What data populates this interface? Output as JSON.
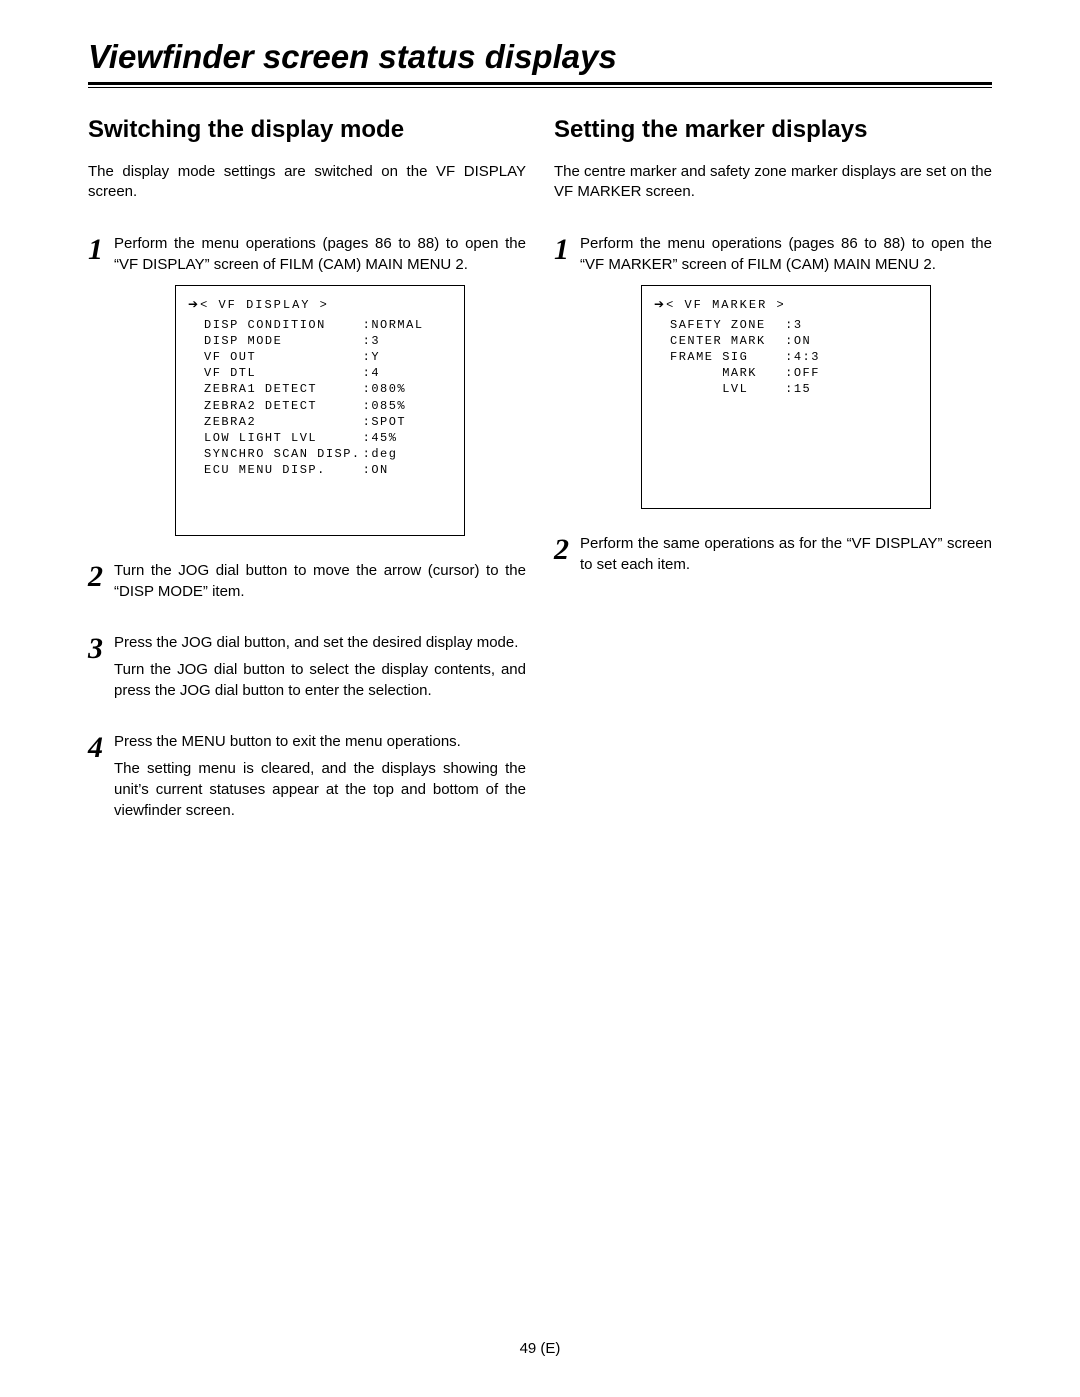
{
  "page_title": "Viewfinder screen status displays",
  "page_number": "49 (E)",
  "left": {
    "title": "Switching the display mode",
    "intro": "The display mode settings are switched on the VF DISPLAY screen.",
    "steps": [
      {
        "num": "1",
        "text": "Perform the menu operations (pages 86 to 88) to open the “VF DISPLAY” screen of FILM (CAM) MAIN MENU 2."
      },
      {
        "num": "2",
        "text": "Turn the JOG dial button to move the arrow (cursor) to the “DISP MODE” item."
      },
      {
        "num": "3",
        "text": "Press the JOG dial button, and set the desired display mode.",
        "text2": "Turn the JOG dial button to select the display contents, and press the JOG dial button to enter the selection."
      },
      {
        "num": "4",
        "text": "Press the MENU button to exit the menu operations.",
        "text2": "The setting menu is cleared, and the displays showing the unit’s current statuses appear at the top and bottom of the viewfinder screen."
      }
    ],
    "menu": {
      "header": "< VF DISPLAY >",
      "rows": [
        {
          "label": "DISP CONDITION",
          "value": ":NORMAL"
        },
        {
          "label": "DISP MODE",
          "value": ":3"
        },
        {
          "label": "VF OUT",
          "value": ":Y"
        },
        {
          "label": "VF DTL",
          "value": ":4"
        },
        {
          "label": "ZEBRA1 DETECT",
          "value": ":080%"
        },
        {
          "label": "ZEBRA2 DETECT",
          "value": ":085%"
        },
        {
          "label": "ZEBRA2",
          "value": ":SPOT"
        },
        {
          "label": "LOW LIGHT LVL",
          "value": ":45%"
        },
        {
          "label": "SYNCHRO SCAN DISP.",
          "value": ":deg"
        },
        {
          "label": "ECU MENU DISP.",
          "value": ":ON"
        }
      ]
    }
  },
  "right": {
    "title": "Setting the marker displays",
    "intro": "The centre marker and safety zone marker displays are set on the VF MARKER screen.",
    "steps": [
      {
        "num": "1",
        "text": "Perform the menu operations (pages 86 to 88) to open the “VF MARKER” screen of FILM (CAM) MAIN MENU 2."
      },
      {
        "num": "2",
        "text": "Perform the same operations as for the “VF DISPLAY” screen to set each item."
      }
    ],
    "menu": {
      "header": "< VF MARKER >",
      "rows": [
        {
          "label": "SAFETY ZONE",
          "value": ":3"
        },
        {
          "label": "CENTER MARK",
          "value": ":ON"
        },
        {
          "label": "FRAME SIG",
          "value": ":4:3"
        },
        {
          "label": "MARK",
          "value": ":OFF",
          "indent": "true"
        },
        {
          "label": "LVL",
          "value": ":15",
          "indent": "true"
        }
      ]
    }
  }
}
